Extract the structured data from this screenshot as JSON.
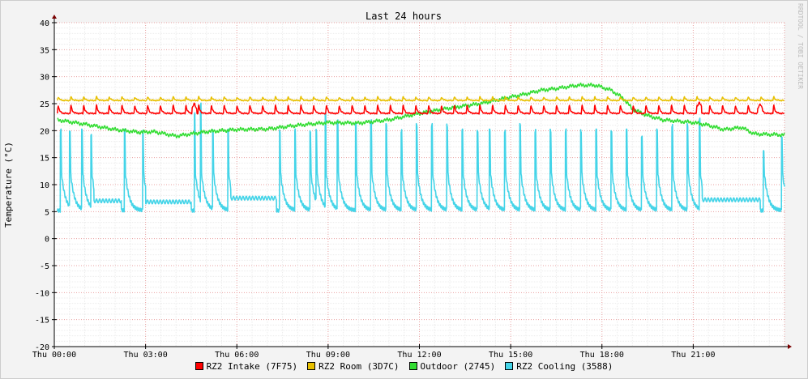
{
  "watermark": "RRDTOOL / TOBI OETIKER",
  "chart_data": {
    "type": "line",
    "title": "Last 24 hours",
    "ylabel": "Temperature (°C)",
    "xlabel": "",
    "ylim": [
      -20,
      40
    ],
    "xlim_hours": [
      0,
      24.0
    ],
    "y_ticks": [
      40,
      35,
      30,
      25,
      20,
      15,
      10,
      5,
      0,
      -5,
      -10,
      -15,
      -20
    ],
    "x_tick_hours": [
      0,
      3,
      6,
      9,
      12,
      15,
      18,
      21
    ],
    "x_tick_labels": [
      "Thu 00:00",
      "Thu 03:00",
      "Thu 06:00",
      "Thu 09:00",
      "Thu 12:00",
      "Thu 15:00",
      "Thu 18:00",
      "Thu 21:00"
    ],
    "grid": true,
    "legend_position": "bottom",
    "series": [
      {
        "name": "RZ2 Intake (7F75)",
        "color": "#ff0000",
        "pattern": "sawtooth",
        "baseline": 23.2,
        "peak": 24.8,
        "period_hours": 0.42,
        "start_hour": 0.1,
        "end_hour": 24.0,
        "extra_peaks": [
          {
            "hour": 4.6,
            "value": 25.0
          },
          {
            "hour": 21.2,
            "value": 25.3
          },
          {
            "hour": 23.2,
            "value": 25.0
          }
        ]
      },
      {
        "name": "RZ2 Room (3D7C)",
        "color": "#e8c000",
        "pattern": "sawtooth",
        "baseline": 25.6,
        "peak": 26.3,
        "period_hours": 0.42,
        "start_hour": 0.1,
        "end_hour": 24.0,
        "extra_peaks": []
      },
      {
        "name": "Outdoor (2745)",
        "color": "#33dd33",
        "pattern": "curve",
        "x": [
          0.1,
          1.0,
          2.0,
          2.8,
          3.3,
          4.0,
          5.0,
          6.0,
          7.0,
          8.0,
          9.0,
          10.0,
          11.0,
          12.0,
          13.0,
          14.0,
          14.8,
          15.5,
          16.0,
          16.5,
          17.2,
          17.8,
          18.3,
          18.7,
          19.0,
          19.5,
          20.0,
          21.0,
          21.5,
          22.0,
          22.6,
          23.0,
          24.0
        ],
        "y": [
          22.0,
          21.2,
          20.2,
          19.7,
          19.8,
          19.0,
          19.8,
          20.2,
          20.3,
          21.0,
          21.5,
          21.4,
          22.0,
          23.2,
          24.2,
          25.0,
          26.0,
          26.8,
          27.5,
          27.8,
          28.4,
          28.4,
          27.5,
          26.0,
          24.0,
          22.8,
          22.0,
          21.5,
          21.0,
          20.2,
          20.6,
          19.4,
          19.2
        ]
      },
      {
        "name": "RZ2 Cooling (3588)",
        "color": "#44d4e8",
        "pattern": "cooling",
        "start_hour": 0.1,
        "end_hour": 24.0,
        "spikes": [
          {
            "hour": 0.2,
            "value": 20
          },
          {
            "hour": 0.5,
            "value": 20
          },
          {
            "hour": 0.9,
            "value": 20
          },
          {
            "hour": 1.2,
            "value": 19
          },
          {
            "hour": 1.6,
            "value": 20
          },
          {
            "hour": 2.3,
            "value": 20
          },
          {
            "hour": 2.9,
            "value": 20
          },
          {
            "hour": 4.6,
            "value": 23
          },
          {
            "hour": 4.8,
            "value": 25
          },
          {
            "hour": 5.2,
            "value": 20
          },
          {
            "hour": 5.7,
            "value": 20
          },
          {
            "hour": 7.4,
            "value": 20
          },
          {
            "hour": 7.9,
            "value": 20
          },
          {
            "hour": 8.4,
            "value": 20
          },
          {
            "hour": 8.6,
            "value": 20
          },
          {
            "hour": 8.9,
            "value": 23
          },
          {
            "hour": 9.3,
            "value": 22
          },
          {
            "hour": 9.9,
            "value": 21
          },
          {
            "hour": 10.4,
            "value": 22
          },
          {
            "hour": 10.9,
            "value": 21
          },
          {
            "hour": 11.4,
            "value": 20
          },
          {
            "hour": 11.9,
            "value": 21
          },
          {
            "hour": 12.4,
            "value": 21
          },
          {
            "hour": 12.9,
            "value": 21
          },
          {
            "hour": 13.4,
            "value": 20
          },
          {
            "hour": 13.9,
            "value": 20
          },
          {
            "hour": 14.3,
            "value": 20
          },
          {
            "hour": 14.8,
            "value": 20
          },
          {
            "hour": 15.3,
            "value": 21
          },
          {
            "hour": 15.8,
            "value": 20
          },
          {
            "hour": 16.3,
            "value": 20
          },
          {
            "hour": 16.8,
            "value": 20
          },
          {
            "hour": 17.3,
            "value": 20
          },
          {
            "hour": 17.8,
            "value": 20
          },
          {
            "hour": 18.3,
            "value": 20
          },
          {
            "hour": 18.8,
            "value": 20
          },
          {
            "hour": 19.3,
            "value": 19
          },
          {
            "hour": 19.8,
            "value": 20
          },
          {
            "hour": 20.3,
            "value": 21
          },
          {
            "hour": 20.8,
            "value": 21
          },
          {
            "hour": 21.2,
            "value": 22
          },
          {
            "hour": 23.3,
            "value": 16
          },
          {
            "hour": 23.9,
            "value": 19
          }
        ],
        "low_segments": [
          {
            "from": 1.3,
            "to": 2.2,
            "level": 7.0
          },
          {
            "from": 3.0,
            "to": 4.5,
            "level": 6.8
          },
          {
            "from": 5.8,
            "to": 7.3,
            "level": 7.5
          },
          {
            "from": 21.3,
            "to": 23.2,
            "level": 7.2
          }
        ]
      }
    ]
  }
}
